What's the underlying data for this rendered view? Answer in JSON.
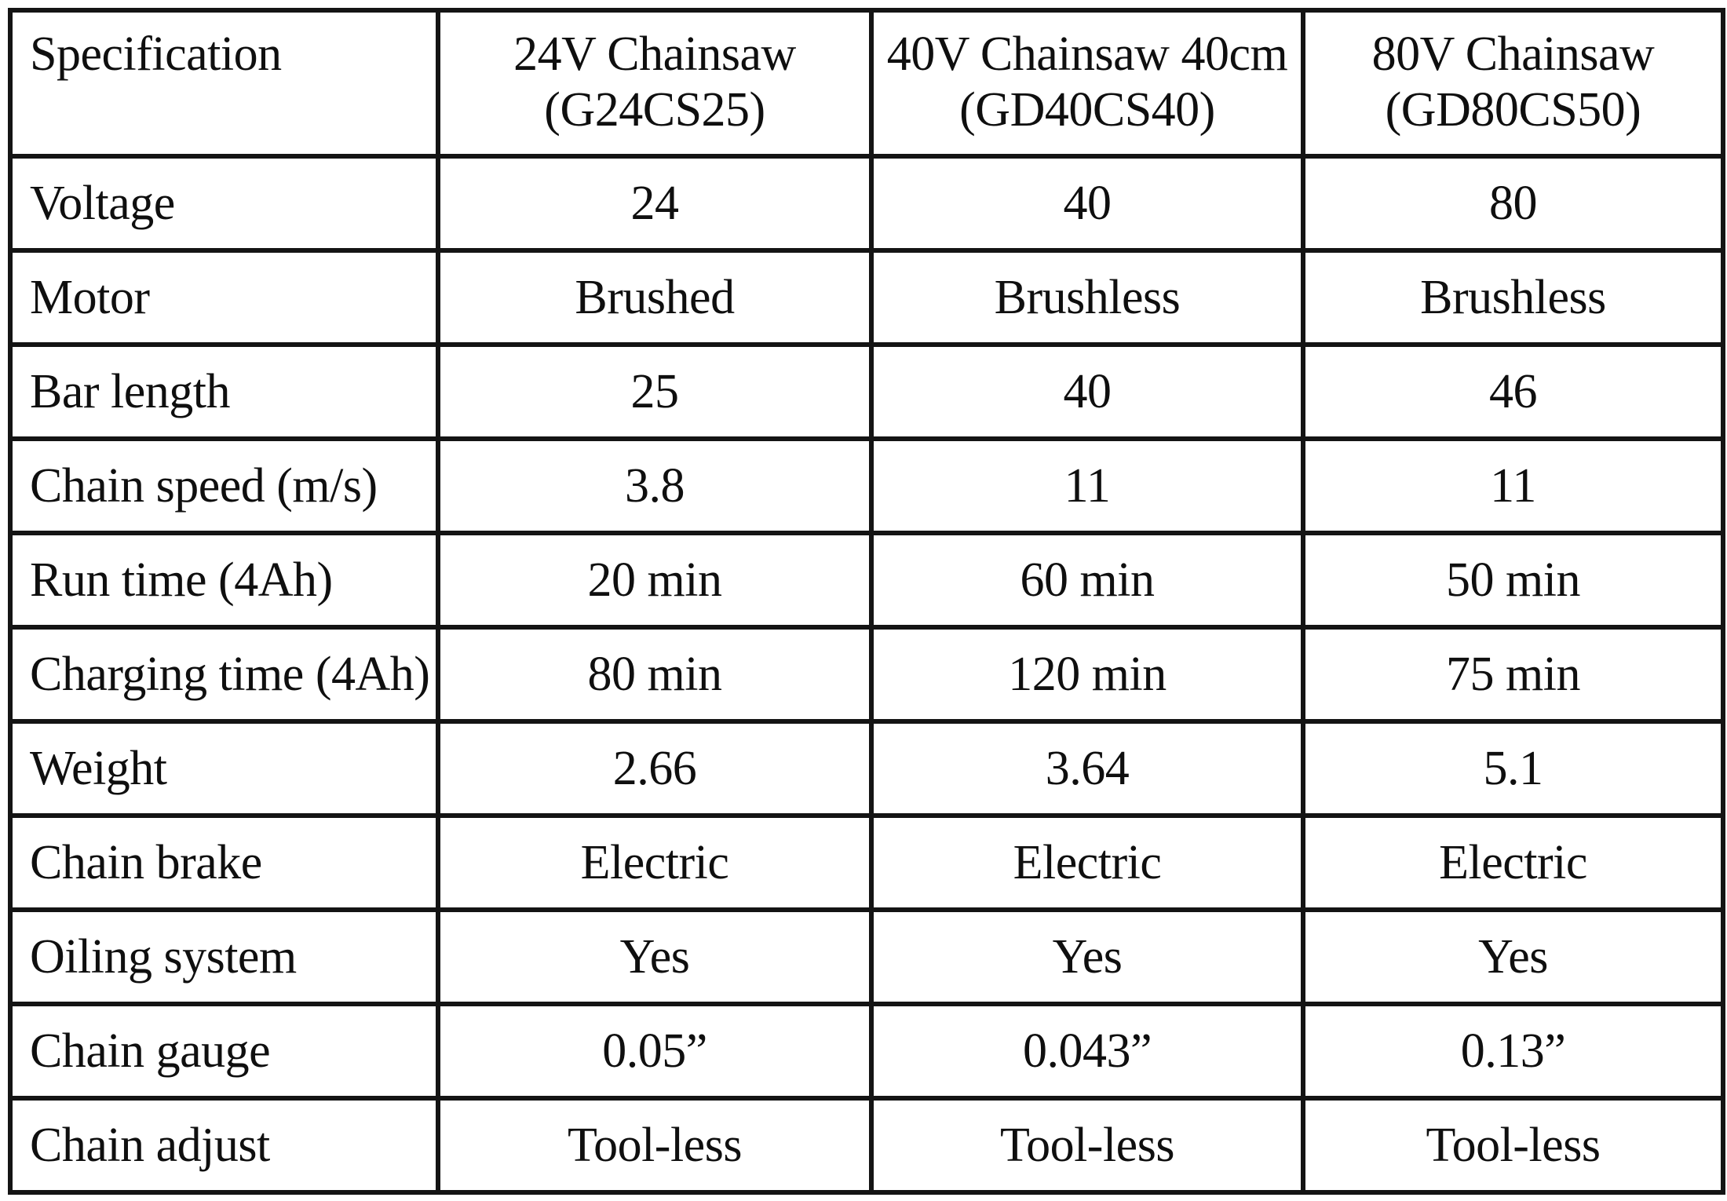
{
  "table": {
    "columns": [
      {
        "label": "Specification",
        "sub": ""
      },
      {
        "label": "24V Chainsaw",
        "sub": "(G24CS25)"
      },
      {
        "label": "40V Chainsaw 40cm",
        "sub": "(GD40CS40)"
      },
      {
        "label": "80V Chainsaw",
        "sub": "(GD80CS50)"
      }
    ],
    "rows": [
      {
        "label": "Voltage",
        "values": [
          "24",
          "40",
          "80"
        ]
      },
      {
        "label": "Motor",
        "values": [
          "Brushed",
          "Brushless",
          "Brushless"
        ]
      },
      {
        "label": "Bar length",
        "values": [
          "25",
          "40",
          "46"
        ]
      },
      {
        "label": "Chain speed (m/s)",
        "values": [
          "3.8",
          "11",
          "11"
        ]
      },
      {
        "label": "Run time (4Ah)",
        "values": [
          "20 min",
          "60 min",
          "50 min"
        ]
      },
      {
        "label": "Charging time (4Ah)",
        "values": [
          "80 min",
          "120 min",
          "75 min"
        ]
      },
      {
        "label": "Weight",
        "values": [
          "2.66",
          "3.64",
          "5.1"
        ]
      },
      {
        "label": "Chain brake",
        "values": [
          "Electric",
          "Electric",
          "Electric"
        ]
      },
      {
        "label": "Oiling system",
        "values": [
          "Yes",
          "Yes",
          "Yes"
        ]
      },
      {
        "label": "Chain gauge",
        "values": [
          "0.05”",
          "0.043”",
          "0.13”"
        ]
      },
      {
        "label": "Chain adjust",
        "values": [
          "Tool-less",
          "Tool-less",
          "Tool-less"
        ]
      }
    ],
    "styles": {
      "border_color": "#141414",
      "text_color": "#0f0f0f",
      "background": "#ffffff",
      "bold_column": "24V Chainsaw (G24CS25)"
    }
  }
}
